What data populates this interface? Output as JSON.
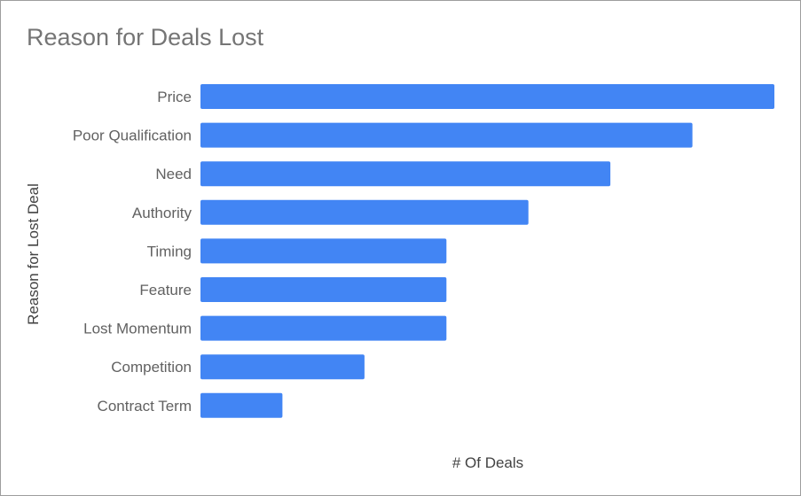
{
  "chart_data": {
    "type": "bar",
    "orientation": "horizontal",
    "title": "Reason for Deals Lost",
    "xlabel": "# Of Deals",
    "ylabel": "Reason for Lost Deal",
    "categories": [
      "Price",
      "Poor Qualification",
      "Need",
      "Authority",
      "Timing",
      "Feature",
      "Lost Momentum",
      "Competition",
      "Contract Term"
    ],
    "values": [
      7,
      6,
      5,
      4,
      3,
      3,
      3,
      2,
      1
    ],
    "xlim": [
      0,
      7
    ],
    "grid": false,
    "legend": "none",
    "bar_color": "#4285f4"
  }
}
